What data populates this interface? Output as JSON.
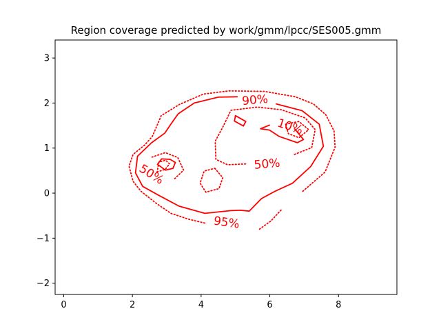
{
  "chart_data": {
    "type": "contour",
    "title": "Region coverage predicted by work/gmm/lpcc/SES005.gmm",
    "xlabel": "",
    "ylabel": "",
    "xlim": [
      -0.25,
      9.7
    ],
    "ylim": [
      -2.25,
      3.4
    ],
    "x_ticks": [
      0,
      2,
      4,
      6,
      8
    ],
    "y_ticks": [
      -2,
      -1,
      0,
      1,
      2,
      3
    ],
    "grid": false,
    "legend": "none",
    "color": "#ff0000",
    "contours": [
      {
        "label": "95%",
        "level": 95,
        "style": "dotted",
        "paths": [
          [
            [
              6.96,
              0.04
            ],
            [
              7.61,
              0.47
            ],
            [
              7.9,
              1.02
            ],
            [
              7.87,
              1.38
            ],
            [
              7.63,
              1.74
            ],
            [
              7.27,
              1.98
            ],
            [
              6.74,
              2.14
            ],
            [
              5.84,
              2.26
            ],
            [
              4.81,
              2.27
            ],
            [
              4.07,
              2.2
            ],
            [
              3.37,
              1.97
            ],
            [
              2.84,
              1.72
            ],
            [
              2.58,
              1.26
            ],
            [
              2.36,
              1.07
            ],
            [
              2.02,
              0.86
            ],
            [
              1.9,
              0.6
            ],
            [
              2.02,
              0.26
            ],
            [
              2.25,
              0.04
            ],
            [
              2.7,
              -0.23
            ],
            [
              3.12,
              -0.45
            ],
            [
              3.64,
              -0.58
            ],
            [
              4.13,
              -0.67
            ]
          ],
          [
            [
              5.7,
              -0.8
            ],
            [
              6.03,
              -0.62
            ],
            [
              6.36,
              -0.35
            ]
          ]
        ]
      },
      {
        "label": "90%",
        "level": 90,
        "style": "solid",
        "paths": [
          [
            [
              6.19,
              1.98
            ],
            [
              6.94,
              1.83
            ],
            [
              7.44,
              1.53
            ],
            [
              7.56,
              1.04
            ],
            [
              7.19,
              0.59
            ],
            [
              6.66,
              0.22
            ],
            [
              6.15,
              0.04
            ],
            [
              5.76,
              -0.12
            ],
            [
              5.4,
              -0.4
            ],
            [
              5.15,
              -0.38
            ],
            [
              4.85,
              -0.39
            ],
            [
              4.11,
              -0.45
            ],
            [
              3.36,
              -0.29
            ],
            [
              2.77,
              -0.05
            ],
            [
              2.3,
              0.15
            ],
            [
              2.09,
              0.45
            ],
            [
              2.15,
              0.82
            ],
            [
              2.56,
              1.12
            ],
            [
              2.94,
              1.33
            ],
            [
              3.11,
              1.52
            ],
            [
              3.33,
              1.76
            ],
            [
              3.8,
              2.0
            ],
            [
              4.5,
              2.13
            ],
            [
              5.05,
              2.14
            ]
          ],
          [
            [
              4.97,
              1.6
            ],
            [
              5.23,
              1.49
            ],
            [
              5.3,
              1.59
            ],
            [
              5.0,
              1.72
            ],
            [
              4.97,
              1.6
            ]
          ],
          [
            [
              2.73,
              0.64
            ],
            [
              2.96,
              0.51
            ],
            [
              3.18,
              0.55
            ],
            [
              3.25,
              0.68
            ],
            [
              3.1,
              0.75
            ],
            [
              2.85,
              0.76
            ],
            [
              2.73,
              0.64
            ]
          ]
        ]
      },
      {
        "label": "50%",
        "level": 50,
        "style": "dotted",
        "paths": [
          [
            [
              4.4,
              0.55
            ],
            [
              4.63,
              0.34
            ],
            [
              4.52,
              0.1
            ],
            [
              4.14,
              0.02
            ],
            [
              3.97,
              0.22
            ],
            [
              4.09,
              0.49
            ],
            [
              4.4,
              0.55
            ]
          ],
          [
            [
              3.23,
              0.32
            ],
            [
              3.49,
              0.51
            ],
            [
              3.32,
              0.79
            ],
            [
              2.96,
              0.9
            ],
            [
              2.57,
              0.8
            ]
          ],
          [
            [
              2.72,
              0.47
            ],
            [
              2.96,
              0.53
            ],
            [
              3.08,
              0.65
            ],
            [
              2.97,
              0.73
            ],
            [
              2.77,
              0.69
            ],
            [
              2.72,
              0.47
            ]
          ],
          [
            [
              6.46,
              1.53
            ],
            [
              6.85,
              1.59
            ],
            [
              7.13,
              1.41
            ],
            [
              6.85,
              1.23
            ],
            [
              6.54,
              1.32
            ],
            [
              6.46,
              1.53
            ]
          ],
          [
            [
              6.72,
              0.86
            ],
            [
              7.22,
              1.01
            ],
            [
              7.32,
              1.41
            ],
            [
              7.03,
              1.67
            ],
            [
              6.34,
              1.85
            ],
            [
              5.64,
              1.91
            ],
            [
              4.87,
              1.84
            ],
            [
              4.62,
              1.45
            ],
            [
              4.41,
              1.15
            ],
            [
              4.43,
              0.75
            ],
            [
              4.77,
              0.63
            ],
            [
              5.35,
              0.65
            ]
          ]
        ]
      },
      {
        "label": "10%",
        "level": 10,
        "style": "solid",
        "paths": [
          [
            [
              6.72,
              1.43
            ],
            [
              6.98,
              1.19
            ],
            [
              6.8,
              1.12
            ],
            [
              6.27,
              1.26
            ],
            [
              5.99,
              1.4
            ],
            [
              5.73,
              1.43
            ],
            [
              5.99,
              1.51
            ]
          ]
        ]
      }
    ],
    "contour_labels": [
      {
        "text": "90%",
        "x": 5.57,
        "y": 2.06,
        "rotation": -5
      },
      {
        "text": "10%",
        "x": 6.59,
        "y": 1.47,
        "rotation": 18
      },
      {
        "text": "50%",
        "x": 5.92,
        "y": 0.64,
        "rotation": -5
      },
      {
        "text": "50%",
        "x": 2.55,
        "y": 0.41,
        "rotation": 32
      },
      {
        "text": "95%",
        "x": 4.74,
        "y": -0.66,
        "rotation": 8
      }
    ]
  }
}
